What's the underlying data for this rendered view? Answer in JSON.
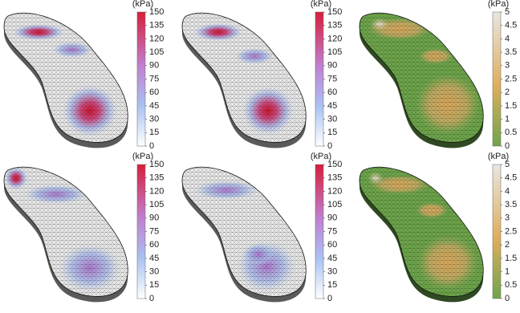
{
  "panels": [
    {
      "unit": "(kPa)",
      "ticks": [
        0,
        15,
        30,
        45,
        60,
        75,
        90,
        105,
        120,
        135,
        150
      ]
    },
    {
      "unit": "(kPa)",
      "ticks": [
        0,
        15,
        30,
        45,
        60,
        75,
        90,
        105,
        120,
        135,
        150
      ]
    },
    {
      "unit": "(kPa)",
      "ticks": [
        0,
        0.5,
        1,
        1.5,
        2,
        2.5,
        3,
        3.5,
        4,
        4.5,
        5
      ]
    },
    {
      "unit": "(kPa)",
      "ticks": [
        0,
        15,
        30,
        45,
        60,
        75,
        90,
        105,
        120,
        135,
        150
      ]
    },
    {
      "unit": "(kPa)",
      "ticks": [
        0,
        15,
        30,
        45,
        60,
        75,
        90,
        105,
        120,
        135,
        150
      ]
    },
    {
      "unit": "(kPa)",
      "ticks": [
        0,
        0.5,
        1,
        1.5,
        2,
        2.5,
        3,
        3.5,
        4,
        4.5,
        5
      ]
    }
  ]
}
